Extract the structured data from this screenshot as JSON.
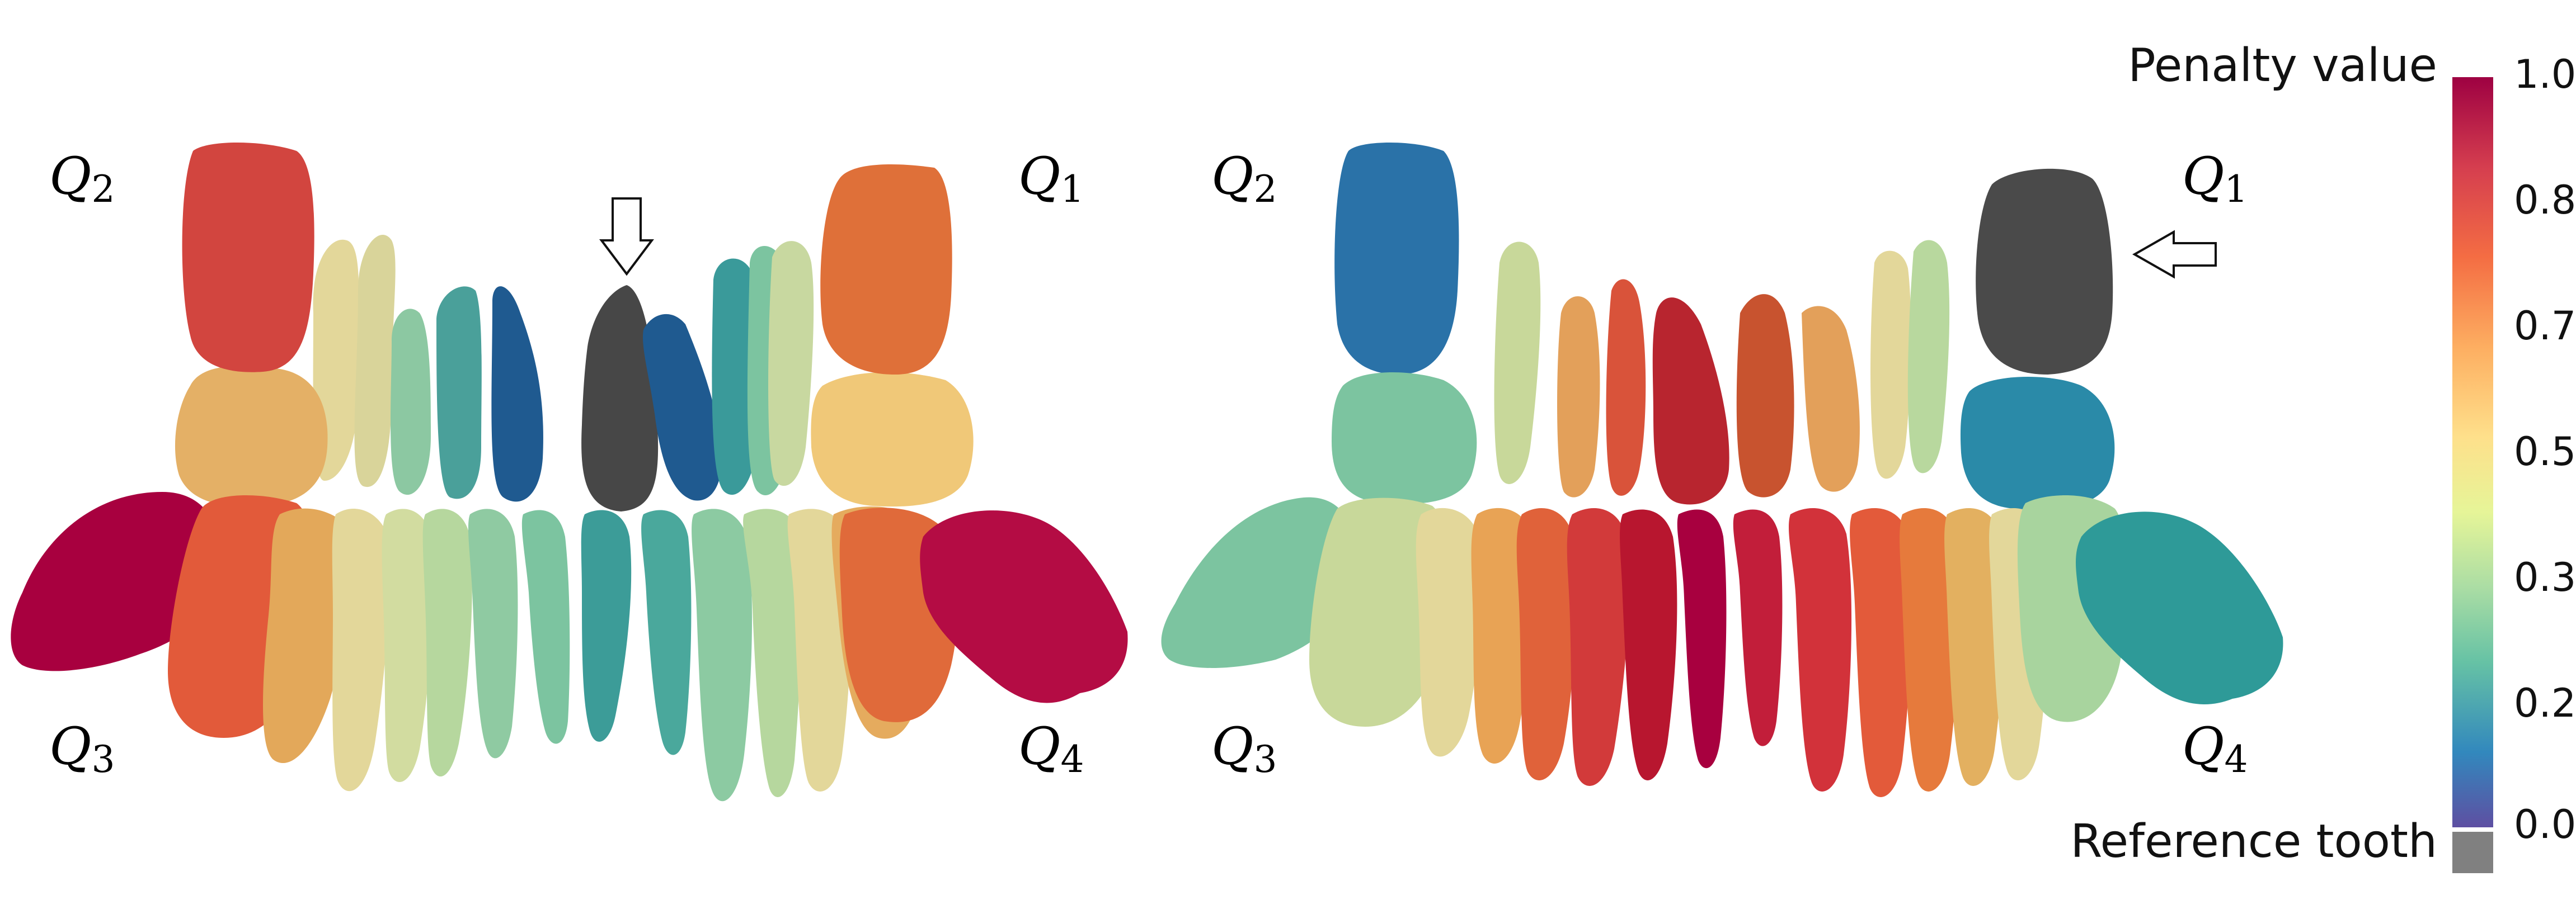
{
  "panels": [
    {
      "labels": {
        "q2": {
          "base": "Q",
          "sub": "2"
        },
        "q1": {
          "base": "Q",
          "sub": "1"
        },
        "q3": {
          "base": "Q",
          "sub": "3"
        },
        "q4": {
          "base": "Q",
          "sub": "4"
        }
      }
    },
    {
      "labels": {
        "q2": {
          "base": "Q",
          "sub": "2"
        },
        "q1": {
          "base": "Q",
          "sub": "1"
        },
        "q3": {
          "base": "Q",
          "sub": "3"
        },
        "q4": {
          "base": "Q",
          "sub": "4"
        }
      }
    }
  ],
  "colorbar": {
    "title": "Penalty value",
    "ticks": [
      "1.0",
      "0.8",
      "0.7",
      "0.5",
      "0.3",
      "0.2",
      "0.0"
    ],
    "reference_label": "Reference tooth",
    "reference_color": "#808080",
    "gradient_colors": [
      "#9e0142",
      "#d53e4f",
      "#f46d43",
      "#fdae61",
      "#fee08b",
      "#e6f598",
      "#abdda4",
      "#66c2a5",
      "#3288bd",
      "#5e4fa2"
    ]
  },
  "colors": {
    "reference": "#4a4a4a",
    "dark_red": "#9e0142",
    "red": "#c33a3a",
    "orange_red": "#d9543a",
    "orange": "#e07a3a",
    "light_orange": "#f0b060",
    "yellow": "#e8dca0",
    "light_green": "#b8d8a0",
    "green": "#7cc4a0",
    "teal": "#3a9a9a",
    "blue": "#2a6ea8",
    "dark_blue": "#1f4f88"
  }
}
